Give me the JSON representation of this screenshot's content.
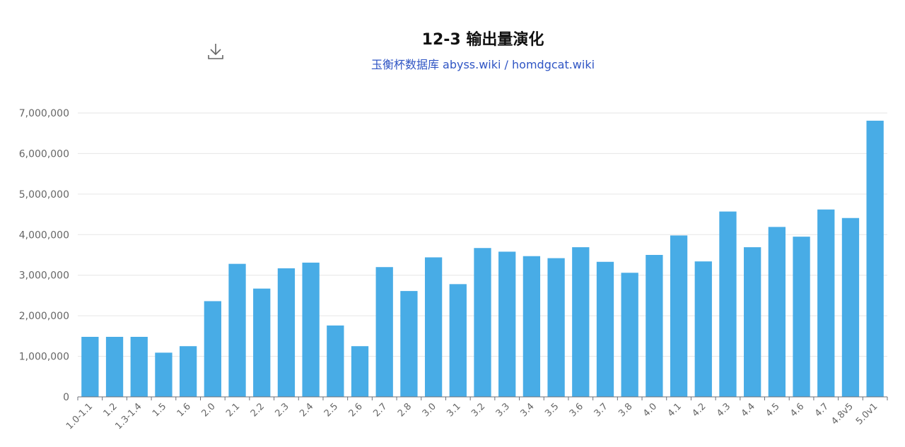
{
  "title": "12-3 输出量演化",
  "subtitle": "玉衡杯数据库 abyss.wiki / homdgcat.wiki",
  "toolbar": {
    "download_icon": "download-icon"
  },
  "colors": {
    "bar": "#48ace6",
    "grid": "#e6e6e6",
    "axis": "#6e7079",
    "title": "#111111",
    "subtitle": "#2f55c4"
  },
  "chart_data": {
    "type": "bar",
    "title": "12-3 输出量演化",
    "subtitle": "玉衡杯数据库 abyss.wiki / homdgcat.wiki",
    "xlabel": "",
    "ylabel": "",
    "ylim": [
      0,
      7000000
    ],
    "yticks": [
      0,
      1000000,
      2000000,
      3000000,
      4000000,
      5000000,
      6000000,
      7000000
    ],
    "ytick_labels": [
      "0",
      "1,000,000",
      "2,000,000",
      "3,000,000",
      "4,000,000",
      "5,000,000",
      "6,000,000",
      "7,000,000"
    ],
    "grid": true,
    "legend": "none",
    "categories": [
      "1.0-1.1",
      "1.2",
      "1.3-1.4",
      "1.5",
      "1.6",
      "2.0",
      "2.1",
      "2.2",
      "2.3",
      "2.4",
      "2.5",
      "2.6",
      "2.7",
      "2.8",
      "3.0",
      "3.1",
      "3.2",
      "3.3",
      "3.4",
      "3.5",
      "3.6",
      "3.7",
      "3.8",
      "4.0",
      "4.1",
      "4.2",
      "4.3",
      "4.4",
      "4.5",
      "4.6",
      "4.7",
      "4.8v5",
      "5.0v1"
    ],
    "values": [
      1480000,
      1480000,
      1480000,
      1090000,
      1250000,
      2360000,
      3280000,
      2670000,
      3170000,
      3310000,
      1760000,
      1250000,
      3200000,
      2610000,
      3440000,
      2780000,
      3670000,
      3580000,
      3470000,
      3420000,
      3690000,
      3330000,
      3060000,
      3500000,
      3980000,
      3340000,
      4570000,
      3690000,
      4190000,
      3950000,
      4620000,
      4410000,
      6810000
    ]
  }
}
